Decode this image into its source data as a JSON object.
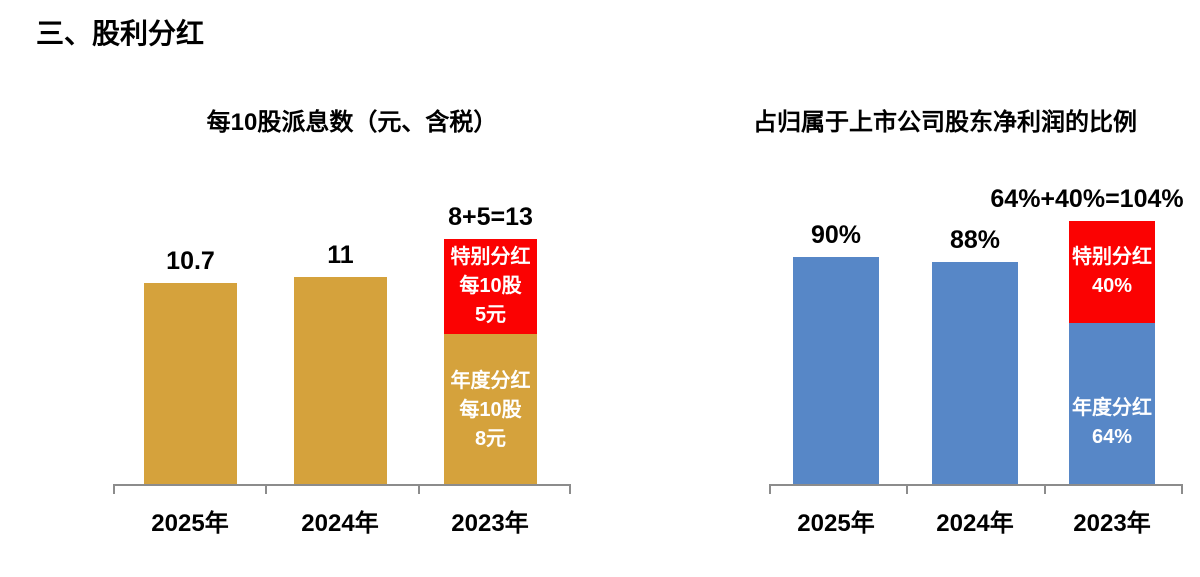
{
  "slide": {
    "title": "三、股利分红"
  },
  "colors": {
    "annual_gold": "#D5A23C",
    "annual_blue": "#5787C7",
    "special_red": "#FB0202",
    "axis_gray": "#8C8C8C",
    "text_black": "#000000",
    "segment_text_white": "#FFFFFF"
  },
  "chart_data": [
    {
      "type": "bar",
      "stacked": true,
      "title": "每10股派息数（元、含税）",
      "categories": [
        "2025年",
        "2024年",
        "2023年"
      ],
      "series": [
        {
          "name": "年度分红",
          "color": "#D5A23C",
          "values": [
            10.7,
            11,
            8
          ]
        },
        {
          "name": "特别分红",
          "color": "#FB0202",
          "values": [
            0,
            0,
            5
          ]
        }
      ],
      "total_labels": [
        "10.7",
        "11",
        "8+5=13"
      ],
      "segment_labels": [
        {
          "bar": "2023年",
          "series": "年度分红",
          "text": "年度分红\n每10股\n8元"
        },
        {
          "bar": "2023年",
          "series": "特别分红",
          "text": "特别分红\n每10股\n5元"
        }
      ],
      "unit": "元",
      "ylim": [
        0,
        13
      ],
      "grid": false,
      "legend": "none"
    },
    {
      "type": "bar",
      "stacked": true,
      "title": "占归属于上市公司股东净利润的比例",
      "categories": [
        "2025年",
        "2024年",
        "2023年"
      ],
      "series": [
        {
          "name": "年度分红",
          "color": "#5787C7",
          "values": [
            90,
            88,
            64
          ]
        },
        {
          "name": "特别分红",
          "color": "#FB0202",
          "values": [
            0,
            0,
            40
          ]
        }
      ],
      "total_labels": [
        "90%",
        "88%",
        "64%+40%=104%"
      ],
      "segment_labels": [
        {
          "bar": "2023年",
          "series": "年度分红",
          "text": "年度分红\n64%"
        },
        {
          "bar": "2023年",
          "series": "特别分红",
          "text": "特别分红\n40%"
        }
      ],
      "unit": "%",
      "ylim": [
        0,
        104
      ],
      "grid": false,
      "legend": "none"
    }
  ]
}
